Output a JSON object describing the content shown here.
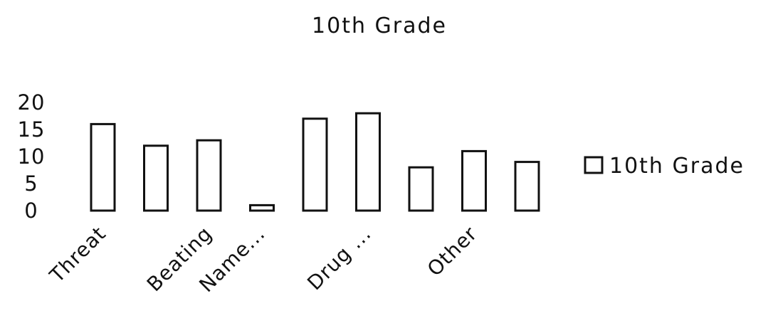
{
  "chart_data": {
    "type": "bar",
    "title": "10th Grade",
    "xlabel": "",
    "ylabel": "",
    "ylim": [
      0,
      20
    ],
    "yticks": [
      "20",
      "15",
      "10",
      "5",
      "0"
    ],
    "categories": [
      "Threat",
      "",
      "Beating",
      "Name...",
      "",
      "Drug ...",
      "",
      "Other",
      ""
    ],
    "series": [
      {
        "name": "10th Grade",
        "values": [
          16,
          12,
          13,
          1,
          17,
          18,
          8,
          11,
          9
        ]
      }
    ],
    "legend": {
      "position": "right",
      "label": "10th Grade"
    },
    "grid": false,
    "bar_fill": "#ffffff",
    "bar_stroke": "#111111"
  }
}
